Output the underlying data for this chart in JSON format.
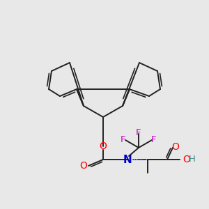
{
  "bg_color": "#e8e8e8",
  "bond_color": "#000000",
  "bond_lw": 1.5,
  "atom_colors": {
    "N": "#0000cc",
    "O": "#ff0000",
    "F": "#cc00cc",
    "H": "#4a9090",
    "C": "#000000"
  },
  "font_size": 9,
  "stereo_dots": true
}
